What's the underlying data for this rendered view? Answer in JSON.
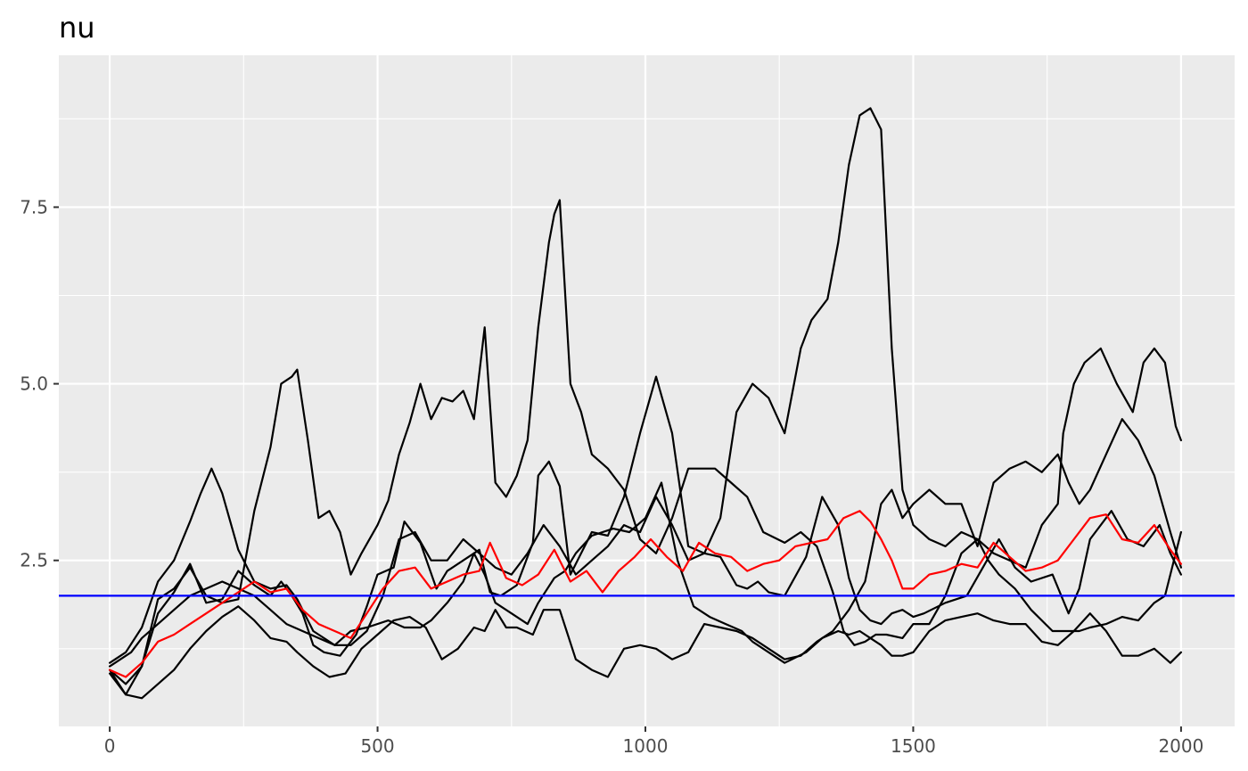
{
  "chart_data": {
    "type": "line",
    "title": "nu",
    "xlabel": "",
    "ylabel": "",
    "xlim": [
      -95,
      2100
    ],
    "ylim": [
      0.15,
      9.65
    ],
    "x_ticks": [
      0,
      500,
      1000,
      1500,
      2000
    ],
    "x_tick_labels": [
      "0",
      "500",
      "1000",
      "1500",
      "2000"
    ],
    "y_ticks": [
      2.5,
      5.0,
      7.5
    ],
    "y_tick_labels": [
      "2.5",
      "5.0",
      "7.5"
    ],
    "grid": true,
    "legend": "none",
    "background": "#ebebeb",
    "series": [
      {
        "color": "#000000",
        "x": [
          0,
          30,
          60,
          90,
          120,
          150,
          170,
          190,
          210,
          240,
          270,
          300,
          330,
          350,
          380,
          420,
          450,
          480,
          520,
          550,
          580,
          600,
          630,
          660,
          680,
          700,
          720,
          750,
          780,
          800,
          830,
          850,
          870,
          900,
          940,
          970,
          1000,
          1030,
          1060,
          1090,
          1120,
          1150,
          1180,
          1200,
          1230,
          1260,
          1300,
          1330,
          1360,
          1380,
          1400,
          1420,
          1440,
          1460,
          1480,
          1500,
          1530,
          1560,
          1590,
          1620,
          1650,
          1680,
          1710,
          1740,
          1770,
          1800,
          1830,
          1860,
          1890,
          1920,
          1950,
          1980,
          2000
        ],
        "y": [
          1.05,
          1.2,
          1.55,
          2.2,
          2.5,
          3.05,
          3.45,
          3.8,
          3.45,
          2.65,
          2.2,
          2.1,
          2.15,
          1.95,
          1.5,
          1.3,
          1.5,
          1.55,
          1.65,
          1.55,
          1.55,
          1.65,
          1.9,
          2.2,
          2.6,
          2.3,
          1.9,
          1.75,
          1.6,
          1.9,
          2.25,
          2.35,
          2.6,
          2.85,
          2.95,
          2.9,
          3.1,
          3.6,
          2.5,
          1.85,
          1.7,
          1.6,
          1.5,
          1.35,
          1.2,
          1.05,
          1.2,
          1.4,
          1.5,
          1.45,
          1.5,
          1.4,
          1.3,
          1.15,
          1.15,
          1.2,
          1.5,
          1.65,
          1.7,
          1.75,
          1.65,
          1.6,
          1.6,
          1.35,
          1.3,
          1.5,
          1.75,
          1.5,
          1.15,
          1.15,
          1.25,
          1.05,
          1.2
        ]
      },
      {
        "color": "#000000",
        "x": [
          0,
          30,
          60,
          90,
          120,
          150,
          180,
          210,
          240,
          270,
          300,
          320,
          340,
          360,
          380,
          400,
          430,
          460,
          480,
          500,
          530,
          550,
          580,
          610,
          630,
          660,
          690,
          710,
          730,
          760,
          790,
          800,
          820,
          840,
          860,
          880,
          900,
          930,
          960,
          990,
          1020,
          1050,
          1080,
          1110,
          1140,
          1170,
          1190,
          1210,
          1230,
          1260,
          1300,
          1330,
          1360,
          1380,
          1400,
          1420,
          1440,
          1460,
          1480,
          1500,
          1520,
          1560,
          1600,
          1630,
          1660,
          1690,
          1720,
          1760,
          1790,
          1810,
          1830,
          1870,
          1900,
          1930,
          1960,
          1980,
          2000
        ],
        "y": [
          0.95,
          0.75,
          1.0,
          1.75,
          2.05,
          2.45,
          1.9,
          1.95,
          2.35,
          2.15,
          2.0,
          2.2,
          2.0,
          1.75,
          1.3,
          1.2,
          1.15,
          1.45,
          1.85,
          2.3,
          2.4,
          3.05,
          2.75,
          2.1,
          2.35,
          2.5,
          2.65,
          2.05,
          2.0,
          2.15,
          2.75,
          3.7,
          3.9,
          3.55,
          2.3,
          2.6,
          2.9,
          2.85,
          3.4,
          4.3,
          5.1,
          4.3,
          2.7,
          2.6,
          2.55,
          2.15,
          2.1,
          2.2,
          2.05,
          2.0,
          2.55,
          3.4,
          3.0,
          2.25,
          1.8,
          1.65,
          1.6,
          1.75,
          1.8,
          1.7,
          1.75,
          1.9,
          2.0,
          2.4,
          2.8,
          2.4,
          2.2,
          2.3,
          1.75,
          2.1,
          2.8,
          3.2,
          2.8,
          2.7,
          3.0,
          2.6,
          2.3
        ]
      },
      {
        "color": "#000000",
        "x": [
          0,
          30,
          60,
          90,
          120,
          150,
          180,
          210,
          240,
          270,
          300,
          320,
          340,
          350,
          370,
          390,
          410,
          430,
          450,
          470,
          500,
          520,
          540,
          560,
          580,
          600,
          620,
          640,
          660,
          680,
          700,
          720,
          740,
          760,
          780,
          800,
          820,
          830,
          840,
          860,
          880,
          900,
          930,
          960,
          990,
          1020,
          1050,
          1080,
          1110,
          1130,
          1160,
          1190,
          1220,
          1260,
          1290,
          1320,
          1350,
          1370,
          1390,
          1410,
          1430,
          1450,
          1480,
          1500,
          1530,
          1560,
          1590,
          1620,
          1640,
          1660,
          1690,
          1720,
          1760,
          1790,
          1810,
          1830,
          1860,
          1890,
          1920,
          1950,
          1970,
          1990,
          2000
        ],
        "y": [
          0.95,
          0.6,
          1.0,
          1.95,
          2.1,
          2.4,
          2.0,
          1.9,
          1.95,
          3.2,
          4.1,
          5.0,
          5.1,
          5.2,
          4.2,
          3.1,
          3.2,
          2.9,
          2.3,
          2.6,
          3.0,
          3.35,
          4.0,
          4.45,
          5.0,
          4.5,
          4.8,
          4.75,
          4.9,
          4.5,
          5.8,
          3.6,
          3.4,
          3.7,
          4.2,
          5.8,
          7.0,
          7.4,
          7.6,
          5.0,
          4.6,
          4.0,
          3.8,
          3.5,
          2.8,
          2.6,
          3.1,
          3.8,
          3.8,
          3.8,
          3.6,
          3.4,
          2.9,
          2.75,
          2.9,
          2.7,
          2.05,
          1.5,
          1.3,
          1.35,
          1.45,
          1.45,
          1.4,
          1.6,
          1.6,
          2.0,
          2.6,
          2.8,
          2.5,
          2.3,
          2.1,
          1.8,
          1.5,
          1.5,
          1.5,
          1.55,
          1.6,
          1.7,
          1.65,
          1.9,
          2.0,
          2.6,
          2.9
        ]
      },
      {
        "color": "#000000",
        "x": [
          0,
          30,
          60,
          90,
          120,
          150,
          180,
          210,
          240,
          270,
          300,
          330,
          350,
          380,
          410,
          440,
          470,
          500,
          530,
          560,
          590,
          620,
          650,
          680,
          700,
          720,
          740,
          760,
          790,
          810,
          840,
          870,
          900,
          930,
          960,
          990,
          1020,
          1050,
          1080,
          1110,
          1140,
          1170,
          1200,
          1230,
          1260,
          1290,
          1320,
          1350,
          1380,
          1410,
          1440,
          1460,
          1480,
          1500,
          1530,
          1560,
          1590,
          1620,
          1650,
          1680,
          1710,
          1740,
          1770,
          1790,
          1810,
          1830,
          1860,
          1890,
          1920,
          1950,
          1980,
          2000
        ],
        "y": [
          0.9,
          0.6,
          0.55,
          0.75,
          0.95,
          1.25,
          1.5,
          1.7,
          1.85,
          1.65,
          1.4,
          1.35,
          1.2,
          1.0,
          0.85,
          0.9,
          1.25,
          1.45,
          1.65,
          1.7,
          1.55,
          1.1,
          1.25,
          1.55,
          1.5,
          1.8,
          1.55,
          1.55,
          1.45,
          1.8,
          1.8,
          1.1,
          0.95,
          0.85,
          1.25,
          1.3,
          1.25,
          1.1,
          1.2,
          1.6,
          1.55,
          1.5,
          1.4,
          1.25,
          1.1,
          1.15,
          1.35,
          1.5,
          1.8,
          2.2,
          3.3,
          3.5,
          3.1,
          3.3,
          3.5,
          3.3,
          3.3,
          2.7,
          3.6,
          3.8,
          3.9,
          3.75,
          4.0,
          3.6,
          3.3,
          3.5,
          4.0,
          4.5,
          4.2,
          3.7,
          2.9,
          2.4
        ]
      },
      {
        "color": "#000000",
        "x": [
          0,
          20,
          40,
          60,
          90,
          120,
          150,
          180,
          210,
          240,
          270,
          300,
          330,
          360,
          390,
          420,
          450,
          480,
          510,
          540,
          570,
          600,
          630,
          660,
          690,
          720,
          750,
          780,
          810,
          840,
          870,
          900,
          930,
          960,
          990,
          1020,
          1050,
          1080,
          1110,
          1140,
          1170,
          1200,
          1230,
          1260,
          1290,
          1310,
          1340,
          1360,
          1380,
          1400,
          1420,
          1440,
          1460,
          1480,
          1500,
          1530,
          1560,
          1590,
          1620,
          1650,
          1680,
          1710,
          1740,
          1770,
          1780,
          1800,
          1820,
          1850,
          1880,
          1910,
          1930,
          1950,
          1970,
          1990,
          2000
        ],
        "y": [
          1.0,
          1.1,
          1.2,
          1.4,
          1.6,
          1.8,
          2.0,
          2.1,
          2.2,
          2.1,
          2.0,
          1.8,
          1.6,
          1.5,
          1.4,
          1.3,
          1.3,
          1.5,
          2.0,
          2.8,
          2.9,
          2.5,
          2.5,
          2.8,
          2.6,
          2.4,
          2.3,
          2.6,
          3.0,
          2.7,
          2.3,
          2.5,
          2.7,
          3.0,
          2.9,
          3.4,
          3.0,
          2.5,
          2.6,
          3.1,
          4.6,
          5.0,
          4.8,
          4.3,
          5.5,
          5.9,
          6.2,
          7.0,
          8.1,
          8.8,
          8.9,
          8.6,
          5.5,
          3.5,
          3.0,
          2.8,
          2.7,
          2.9,
          2.8,
          2.6,
          2.5,
          2.4,
          3.0,
          3.3,
          4.3,
          5.0,
          5.3,
          5.5,
          5.0,
          4.6,
          5.3,
          5.5,
          5.3,
          4.4,
          4.2
        ]
      },
      {
        "color": "#ff0000",
        "x": [
          0,
          30,
          60,
          90,
          120,
          150,
          180,
          210,
          240,
          270,
          300,
          330,
          360,
          390,
          420,
          450,
          480,
          510,
          540,
          570,
          600,
          630,
          660,
          690,
          710,
          740,
          770,
          800,
          830,
          860,
          890,
          920,
          950,
          980,
          1010,
          1040,
          1070,
          1100,
          1130,
          1160,
          1190,
          1220,
          1250,
          1280,
          1310,
          1340,
          1370,
          1400,
          1420,
          1440,
          1460,
          1480,
          1500,
          1530,
          1560,
          1590,
          1620,
          1650,
          1680,
          1710,
          1740,
          1770,
          1800,
          1830,
          1860,
          1890,
          1920,
          1950,
          1980,
          2000
        ],
        "y": [
          0.95,
          0.85,
          1.05,
          1.35,
          1.45,
          1.6,
          1.75,
          1.9,
          2.05,
          2.2,
          2.05,
          2.1,
          1.8,
          1.6,
          1.5,
          1.4,
          1.75,
          2.1,
          2.35,
          2.4,
          2.1,
          2.2,
          2.3,
          2.35,
          2.75,
          2.25,
          2.15,
          2.3,
          2.65,
          2.2,
          2.35,
          2.05,
          2.35,
          2.55,
          2.8,
          2.55,
          2.35,
          2.75,
          2.6,
          2.55,
          2.35,
          2.45,
          2.5,
          2.7,
          2.75,
          2.8,
          3.1,
          3.2,
          3.05,
          2.8,
          2.5,
          2.1,
          2.1,
          2.3,
          2.35,
          2.45,
          2.4,
          2.75,
          2.55,
          2.35,
          2.4,
          2.5,
          2.8,
          3.1,
          3.15,
          2.8,
          2.75,
          3.0,
          2.65,
          2.45
        ]
      }
    ],
    "hlines": [
      {
        "y": 2.0,
        "color": "#0000ff"
      }
    ]
  }
}
